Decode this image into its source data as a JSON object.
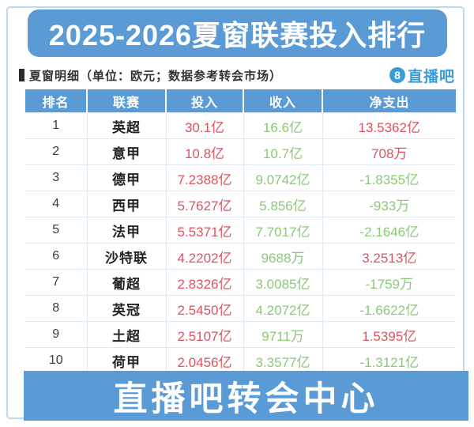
{
  "page": {
    "title": "2025-2026夏窗联赛投入排行",
    "subtitle": "夏窗明细（单位：欧元；数据参考转会市场）",
    "footer": "直播吧转会中心",
    "logo": {
      "badge": "8",
      "text": "直播吧"
    }
  },
  "colors": {
    "banner_blue": "#5b9bd5",
    "logo_blue": "#3b9bd8",
    "frame_blue": "#b9d9ec",
    "value_red": "#d9545f",
    "value_green": "#8cc878"
  },
  "chart_data": {
    "type": "table",
    "title": "2025-2026夏窗联赛投入排行",
    "unit_note": "单位：欧元；数据参考转会市场",
    "columns": [
      "排名",
      "联赛",
      "投入",
      "收入",
      "净支出"
    ],
    "rows": [
      {
        "rank": "1",
        "league": "英超",
        "spend": "30.1亿",
        "income": "16.6亿",
        "net": "13.5362亿",
        "net_negative": false
      },
      {
        "rank": "2",
        "league": "意甲",
        "spend": "10.8亿",
        "income": "10.7亿",
        "net": "708万",
        "net_negative": false
      },
      {
        "rank": "3",
        "league": "德甲",
        "spend": "7.2388亿",
        "income": "9.0742亿",
        "net": "-1.8355亿",
        "net_negative": true
      },
      {
        "rank": "4",
        "league": "西甲",
        "spend": "5.7627亿",
        "income": "5.856亿",
        "net": "-933万",
        "net_negative": true
      },
      {
        "rank": "5",
        "league": "法甲",
        "spend": "5.5371亿",
        "income": "7.7017亿",
        "net": "-2.1646亿",
        "net_negative": true
      },
      {
        "rank": "6",
        "league": "沙特联",
        "spend": "4.2202亿",
        "income": "9688万",
        "net": "3.2513亿",
        "net_negative": false
      },
      {
        "rank": "7",
        "league": "葡超",
        "spend": "2.8326亿",
        "income": "3.0085亿",
        "net": "-1759万",
        "net_negative": true
      },
      {
        "rank": "8",
        "league": "英冠",
        "spend": "2.5450亿",
        "income": "4.2072亿",
        "net": "-1.6622亿",
        "net_negative": true
      },
      {
        "rank": "9",
        "league": "土超",
        "spend": "2.5107亿",
        "income": "9711万",
        "net": "1.5395亿",
        "net_negative": false
      },
      {
        "rank": "10",
        "league": "荷甲",
        "spend": "2.0456亿",
        "income": "3.3577亿",
        "net": "-1.3121亿",
        "net_negative": true
      }
    ]
  }
}
